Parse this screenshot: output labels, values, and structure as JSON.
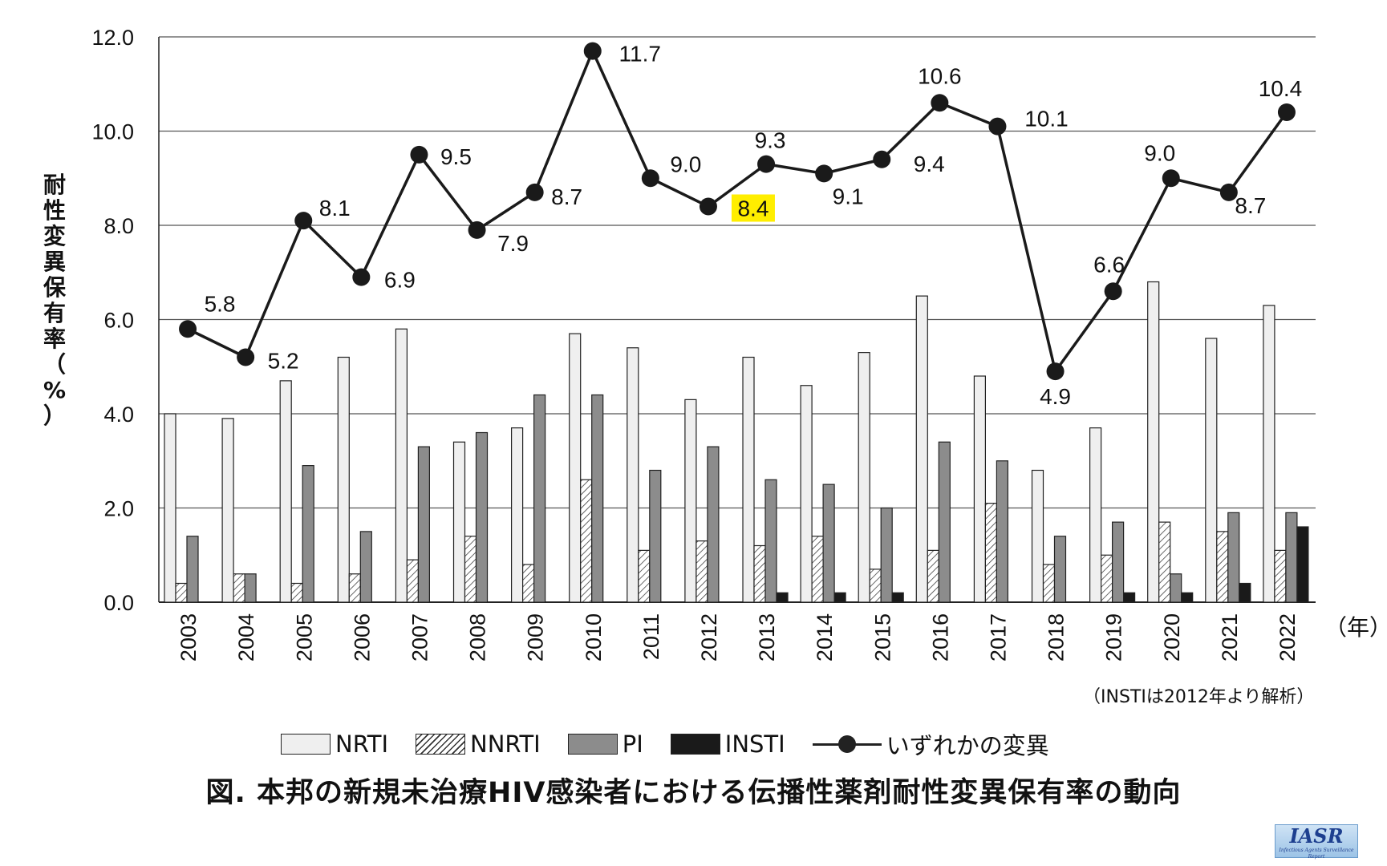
{
  "chart_data": {
    "type": "bar+line",
    "categories": [
      "2003",
      "2004",
      "2005",
      "2006",
      "2007",
      "2008",
      "2009",
      "2010",
      "2011",
      "2012",
      "2013",
      "2014",
      "2015",
      "2016",
      "2017",
      "2018",
      "2019",
      "2020",
      "2021",
      "2022"
    ],
    "series": [
      {
        "name": "NRTI",
        "type": "bar",
        "fill": "#efefef",
        "values": [
          4.0,
          3.9,
          4.7,
          5.2,
          5.8,
          3.4,
          3.7,
          5.7,
          5.4,
          4.3,
          5.2,
          4.6,
          5.3,
          6.5,
          4.8,
          2.8,
          3.7,
          6.8,
          5.6,
          6.3
        ]
      },
      {
        "name": "NNRTI",
        "type": "bar",
        "fill": "hatch",
        "values": [
          0.4,
          0.6,
          0.4,
          0.6,
          0.9,
          1.4,
          0.8,
          2.6,
          1.1,
          1.3,
          1.2,
          1.4,
          0.7,
          1.1,
          2.1,
          0.8,
          1.0,
          1.7,
          1.5,
          1.1
        ]
      },
      {
        "name": "PI",
        "type": "bar",
        "fill": "#8c8c8c",
        "values": [
          1.4,
          0.6,
          2.9,
          1.5,
          3.3,
          3.6,
          4.4,
          4.4,
          2.8,
          3.3,
          2.6,
          2.5,
          2.0,
          3.4,
          3.0,
          1.4,
          1.7,
          0.6,
          1.9,
          1.9
        ]
      },
      {
        "name": "INSTI",
        "type": "bar",
        "fill": "#1a1a1a",
        "values": [
          null,
          null,
          null,
          null,
          null,
          null,
          null,
          null,
          null,
          0.0,
          0.2,
          0.2,
          0.2,
          0.0,
          0.0,
          0.0,
          0.2,
          0.2,
          0.4,
          1.6
        ]
      },
      {
        "name": "いずれかの変異",
        "type": "line",
        "color": "#1a1a1a",
        "values": [
          5.8,
          5.2,
          8.1,
          6.9,
          9.5,
          7.9,
          8.7,
          11.7,
          9.0,
          8.4,
          9.3,
          9.1,
          9.4,
          10.6,
          10.1,
          4.9,
          6.6,
          9.0,
          8.7,
          10.4
        ],
        "labels": [
          "5.8",
          "5.2",
          "8.1",
          "6.9",
          "9.5",
          "7.9",
          "8.7",
          "11.7",
          "9.0",
          "8.4",
          "9.3",
          "9.1",
          "9.4",
          "10.6",
          "10.1",
          "4.9",
          "6.6",
          "9.0",
          "8.7",
          "10.4"
        ],
        "highlighted_label": "8.4",
        "highlight_color": "#ffee00"
      }
    ],
    "ylabel": "耐性変異保有率（%）",
    "xunit": "（年）",
    "ylim": [
      0,
      12
    ],
    "yticks": [
      "0.0",
      "2.0",
      "4.0",
      "6.0",
      "8.0",
      "10.0",
      "12.0"
    ],
    "grid": true,
    "legend_position": "bottom"
  },
  "ylabel_chars": [
    "耐",
    "性",
    "変",
    "異",
    "保",
    "有",
    "率",
    "（",
    "%",
    "）"
  ],
  "note": "（INSTIは2012年より解析）",
  "legend": {
    "nrti": "NRTI",
    "nnrti": "NNRTI",
    "pi": "PI",
    "insti": "INSTI",
    "any": "いずれかの変異"
  },
  "caption": "図. 本邦の新規未治療HIV感染者における伝播性薬剤耐性変異保有率の動向",
  "logo": {
    "text": "IASR",
    "subtitle": "Infectious Agents Surveillance Report"
  }
}
